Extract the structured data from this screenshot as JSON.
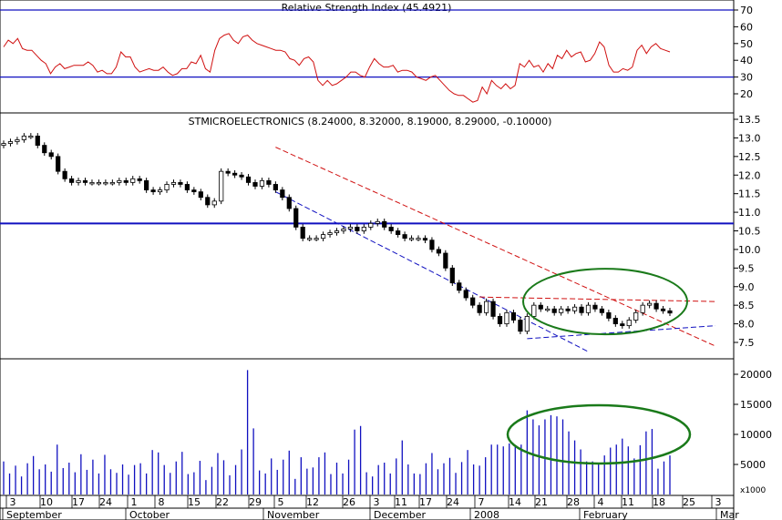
{
  "chart_data": [
    {
      "type": "line",
      "panel": "rsi",
      "title": "Relative Strength Index (45.4921)",
      "ylim": [
        10,
        75
      ],
      "y_ticks": [
        20,
        30,
        40,
        50,
        60,
        70
      ],
      "reference_lines": [
        70,
        30
      ],
      "colors": {
        "series": "#d01010",
        "reference": "#1010c0"
      },
      "series": [
        {
          "values": [
            48,
            52,
            50,
            53,
            47,
            46,
            46,
            43,
            40,
            38,
            32,
            36,
            38,
            35,
            36,
            37,
            37,
            37,
            39,
            37,
            33,
            34,
            32,
            32,
            36,
            45,
            42,
            42,
            36,
            33,
            34,
            35,
            34,
            34,
            36,
            33,
            31,
            32,
            35,
            35,
            39,
            38,
            43,
            35,
            33,
            46,
            53,
            55,
            56,
            52,
            50,
            54,
            55,
            52,
            50,
            49,
            48,
            47,
            46,
            46,
            45,
            41,
            40,
            37,
            41,
            42,
            39,
            28,
            25,
            28,
            25,
            26,
            28,
            30,
            33,
            33,
            31,
            30,
            36,
            41,
            38,
            36,
            36,
            37,
            33,
            34,
            34,
            33,
            30,
            29,
            28,
            30,
            31,
            28,
            25,
            22,
            20,
            19,
            19,
            17,
            15,
            16,
            24,
            20,
            28,
            25,
            23,
            26,
            23,
            25,
            38,
            36,
            40,
            36,
            37,
            33,
            38,
            35,
            43,
            41,
            46,
            42,
            44,
            45,
            39,
            40,
            44,
            51,
            48,
            37,
            33,
            33,
            35,
            34,
            36,
            46,
            49,
            44,
            48,
            50,
            47,
            46,
            45
          ]
        }
      ]
    },
    {
      "type": "candlestick",
      "panel": "price",
      "title": "STMICROELECTRONICS (8.24000, 8.32000, 8.19000, 8.29000, -0.10000)",
      "ylim": [
        7.2,
        13.5
      ],
      "y_ticks": [
        7.5,
        8.0,
        8.5,
        9.0,
        9.5,
        10.0,
        10.5,
        11.0,
        11.5,
        12.0,
        12.5,
        13.0,
        13.5
      ],
      "horizontal_line": 10.7,
      "colors": {
        "up": "#ffffff",
        "down": "#000000",
        "resistance": "#d01010",
        "support": "#1010c0",
        "ellipse": "#1a7a1a",
        "hline": "#1010c0"
      },
      "series": [
        {
          "values": [
            12.85,
            12.9,
            12.95,
            13.05,
            13.05,
            12.8,
            12.6,
            12.5,
            12.1,
            11.9,
            11.8,
            11.85,
            11.8,
            11.8,
            11.8,
            11.8,
            11.8,
            11.85,
            11.8,
            11.9,
            11.85,
            11.6,
            11.55,
            11.6,
            11.75,
            11.8,
            11.75,
            11.6,
            11.55,
            11.4,
            11.2,
            11.3,
            12.1,
            12.05,
            12.0,
            11.95,
            11.8,
            11.7,
            11.85,
            11.75,
            11.6,
            11.4,
            11.1,
            10.6,
            10.3,
            10.3,
            10.3,
            10.4,
            10.45,
            10.5,
            10.55,
            10.6,
            10.5,
            10.6,
            10.7,
            10.75,
            10.6,
            10.5,
            10.4,
            10.3,
            10.3,
            10.3,
            10.25,
            10.0,
            9.9,
            9.5,
            9.1,
            8.9,
            8.7,
            8.5,
            8.3,
            8.6,
            8.2,
            8.0,
            8.3,
            8.1,
            7.8,
            8.2,
            8.5,
            8.4,
            8.4,
            8.3,
            8.4,
            8.35,
            8.45,
            8.3,
            8.5,
            8.4,
            8.3,
            8.15,
            8.0,
            7.95,
            8.1,
            8.3,
            8.5,
            8.55,
            8.4,
            8.35,
            8.29
          ]
        }
      ],
      "annotations": [
        "resistance trend line",
        "support trend line",
        "triangle ellipse"
      ]
    },
    {
      "type": "bar",
      "panel": "volume",
      "ylim": [
        0,
        22000
      ],
      "y_ticks": [
        5000,
        10000,
        15000,
        20000
      ],
      "unit_label": "x1000",
      "colors": {
        "bars": "#1010c0",
        "ellipse": "#1a7a1a"
      },
      "series": [
        {
          "values": [
            5500,
            3500,
            4800,
            3000,
            5200,
            6400,
            4200,
            5000,
            3800,
            8300,
            4400,
            5300,
            3700,
            6700,
            4100,
            5800,
            3500,
            6600,
            4200,
            3600,
            5000,
            3300,
            4900,
            5200,
            3500,
            7400,
            7000,
            4900,
            3600,
            5500,
            7100,
            3400,
            3700,
            5600,
            2400,
            4600,
            6900,
            5700,
            3200,
            4900,
            7500,
            20700,
            11000,
            4000,
            3500,
            6000,
            4100,
            5800,
            7300,
            2600,
            6200,
            4300,
            4500,
            6200,
            7000,
            3400,
            5300,
            3500,
            5800,
            10800,
            11400,
            3700,
            3000,
            4900,
            5300,
            3500,
            6000,
            9000,
            5000,
            3500,
            3400,
            5200,
            6900,
            4200,
            5200,
            6100,
            3600,
            5400,
            7400,
            5000,
            4800,
            6200,
            8300,
            8300,
            8000,
            8500,
            8200,
            8300,
            14000,
            12500,
            11500,
            12500,
            13200,
            13000,
            12500,
            10500,
            9000,
            7500,
            5500,
            5500,
            5000,
            6500,
            7800,
            8300,
            9300,
            8000,
            6000,
            8200,
            10500,
            10900,
            4300,
            5500,
            6500
          ]
        }
      ]
    }
  ],
  "x_axis": {
    "day_labels": [
      "3",
      "10",
      "17",
      "24",
      "1",
      "8",
      "15",
      "22",
      "29",
      "5",
      "12",
      "26",
      "3",
      "11",
      "17",
      "24",
      "7",
      "14",
      "21",
      "28",
      "4",
      "11",
      "18",
      "25",
      "3"
    ],
    "month_labels": [
      "September",
      "October",
      "November",
      "December",
      "2008",
      "February",
      "Mar"
    ]
  },
  "right_axis_note": "x1000"
}
